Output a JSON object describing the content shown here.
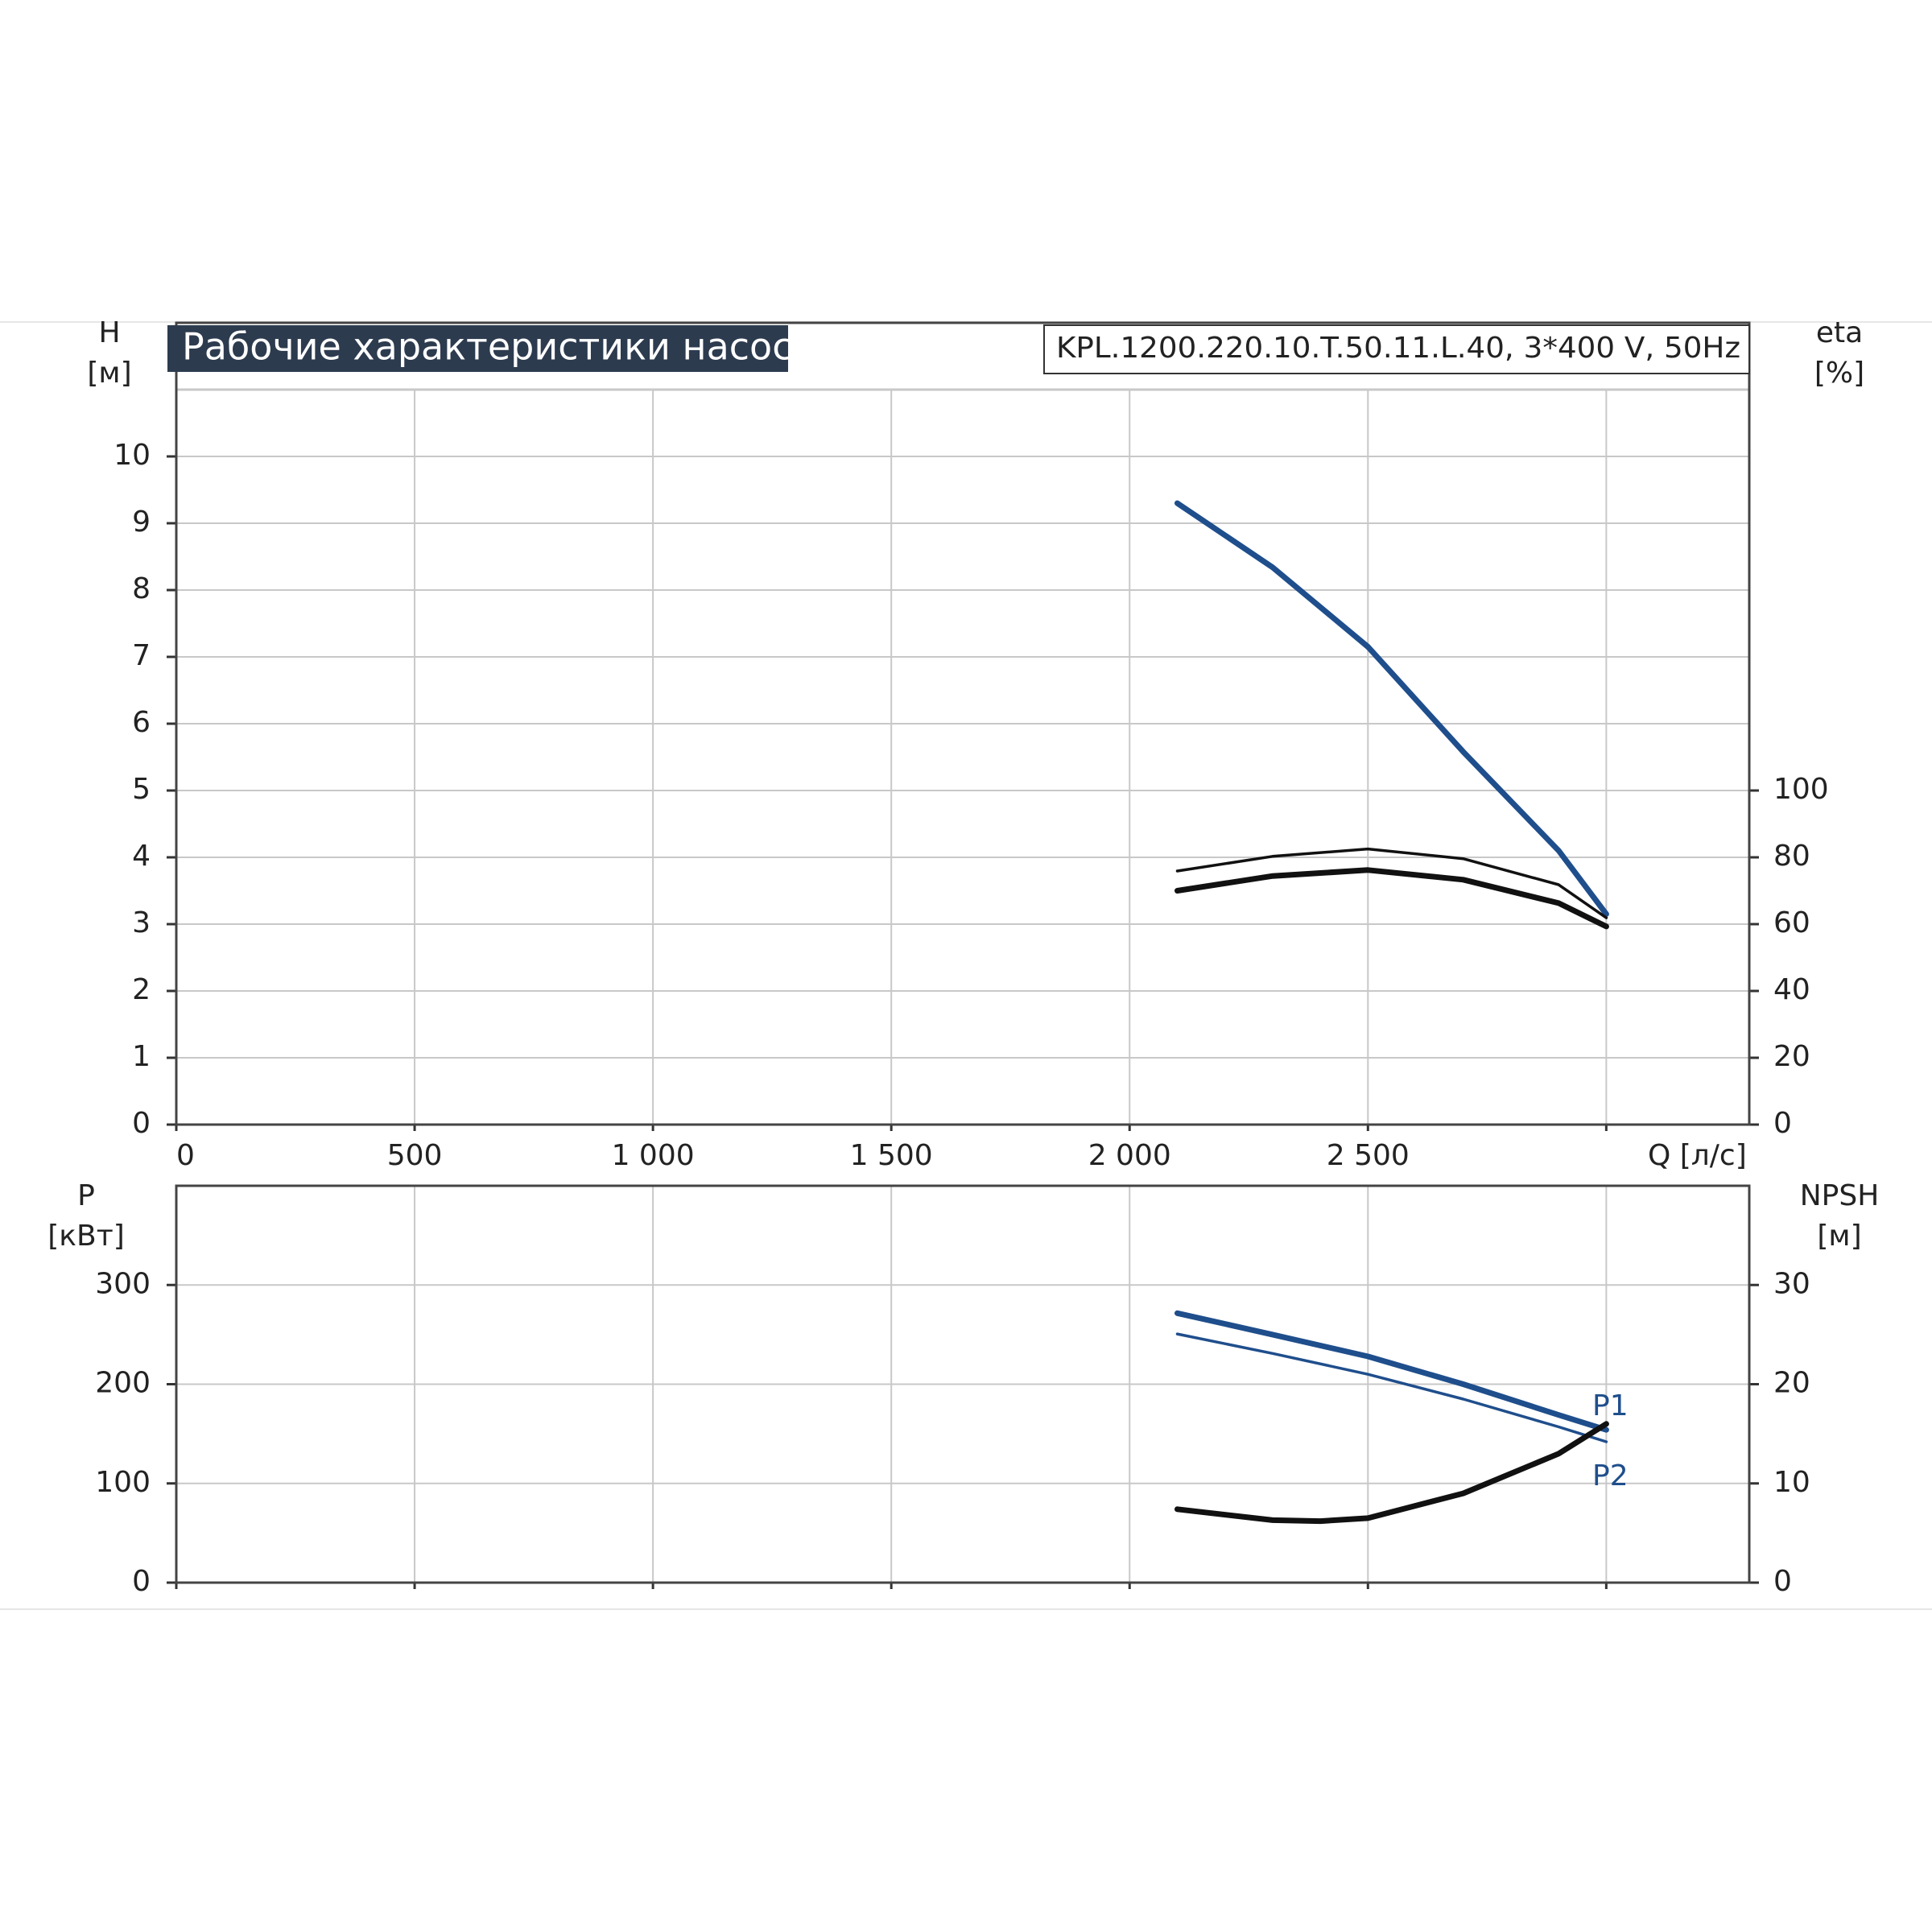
{
  "chart_data": [
    {
      "type": "line",
      "title": "Рабочие характеристики насоса",
      "subtitle": "KPL.1200.220.10.T.50.11.L.40, 3*400 V, 50Hz",
      "y_label": "H",
      "y_unit": "[м]",
      "y2_label": "eta",
      "y2_unit": "[%]",
      "xlim": [
        0,
        3300
      ],
      "xticks": [
        0,
        500,
        {
          "value": 1000,
          "label": "1 000"
        },
        {
          "value": 1500,
          "label": "1 500"
        },
        {
          "value": 2000,
          "label": "2 000"
        },
        {
          "value": 2500,
          "label": "2 500"
        },
        {
          "value": 3000,
          "label": "Q [л/с]"
        }
      ],
      "ylim": [
        0,
        11
      ],
      "yticks": [
        0,
        1,
        2,
        3,
        4,
        5,
        6,
        7,
        8,
        9,
        10
      ],
      "y2lim": [
        0,
        220
      ],
      "y2ticks": [
        0,
        20,
        40,
        60,
        80,
        100
      ],
      "grid": true,
      "series": [
        {
          "color": "#1f4e8c",
          "x": [
            2100,
            2300,
            2500,
            2700,
            2900,
            3000
          ],
          "values": [
            9.3,
            8.34,
            7.15,
            5.58,
            4.1,
            3.15
          ]
        },
        {
          "color": "#111111",
          "axis": "y2",
          "x": [
            2100,
            2300,
            2500,
            2700,
            2900,
            3000
          ],
          "values": [
            75.9,
            80.3,
            82.5,
            79.6,
            71.8,
            61.9
          ]
        },
        {
          "color": "#111111",
          "axis": "y2",
          "x": [
            2100,
            2300,
            2500,
            2700,
            2900,
            3000
          ],
          "values": [
            70,
            74.4,
            76.2,
            73.3,
            66.3,
            59.3
          ]
        }
      ]
    },
    {
      "type": "line",
      "y_label": "P",
      "y_unit": "[кВт]",
      "y2_label": "NPSH",
      "y2_unit": "[м]",
      "xlim": [
        0,
        3300
      ],
      "ylim": [
        0,
        400
      ],
      "yticks": [
        0,
        100,
        200,
        300
      ],
      "y2lim": [
        0,
        40
      ],
      "y2ticks": [
        0,
        10,
        20,
        30
      ],
      "grid": true,
      "series": [
        {
          "name": "P1",
          "color": "#1f4e8c",
          "x": [
            2100,
            2300,
            2500,
            2700,
            2900,
            3000
          ],
          "values": [
            271.6,
            250,
            228,
            200,
            169,
            154
          ]
        },
        {
          "name": "P2",
          "color": "#1f4e8c",
          "x": [
            2100,
            2300,
            2500,
            2700,
            2900,
            3000
          ],
          "values": [
            250.6,
            231,
            210,
            185,
            157,
            142
          ]
        },
        {
          "color": "#111111",
          "axis": "y2",
          "x": [
            2100,
            2300,
            2400,
            2500,
            2700,
            2900,
            3000
          ],
          "values": [
            7.4,
            6.3,
            6.2,
            6.5,
            9.0,
            13,
            16
          ]
        }
      ]
    }
  ]
}
